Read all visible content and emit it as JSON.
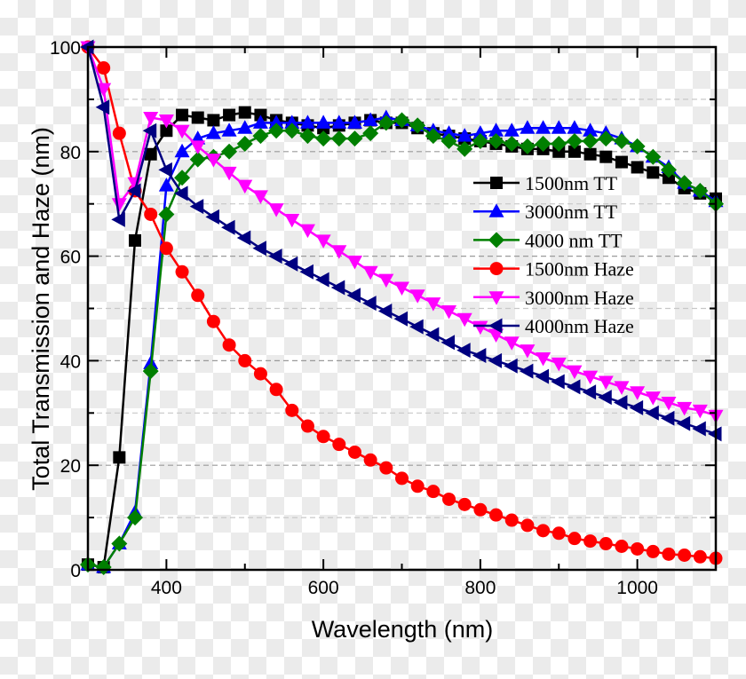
{
  "chart_data": {
    "type": "line",
    "title": "",
    "xlabel": "Wavelength (nm)",
    "ylabel": "Total Transmission and Haze (nm)",
    "xlim": [
      300,
      1100
    ],
    "ylim": [
      0,
      100
    ],
    "xticks": [
      400,
      600,
      800,
      1000
    ],
    "yticks": [
      0,
      20,
      40,
      60,
      80,
      100
    ],
    "grid": "horizontal dashed",
    "legend_position": "right",
    "x": [
      300,
      320,
      340,
      360,
      380,
      400,
      420,
      440,
      460,
      480,
      500,
      520,
      540,
      560,
      580,
      600,
      620,
      640,
      660,
      680,
      700,
      720,
      740,
      760,
      780,
      800,
      820,
      840,
      860,
      880,
      900,
      920,
      940,
      960,
      980,
      1000,
      1020,
      1040,
      1060,
      1080,
      1100
    ],
    "series": [
      {
        "name": "1500nm TT",
        "color": "#000000",
        "marker": "square",
        "values": [
          1,
          0.5,
          21.5,
          63,
          79.5,
          84,
          87,
          86.5,
          86,
          87,
          87.5,
          87,
          86,
          85.5,
          85,
          84.5,
          85,
          85.5,
          86,
          85.5,
          85.5,
          84.5,
          83.5,
          83,
          82.5,
          82,
          81.5,
          81,
          80.5,
          80.5,
          80,
          80,
          79.5,
          79,
          78,
          77,
          76,
          75,
          73,
          72,
          71
        ]
      },
      {
        "name": "3000nm TT",
        "color": "#0000ff",
        "marker": "triangle-up",
        "values": [
          1,
          0.5,
          5,
          11,
          39.5,
          73.5,
          80,
          82.5,
          83.5,
          84,
          84.5,
          85.5,
          85.5,
          85.5,
          85.5,
          85.5,
          85.5,
          85.5,
          86,
          86.5,
          86,
          85,
          84,
          83.5,
          83,
          83.5,
          84,
          84,
          84.5,
          84.5,
          84.5,
          84.5,
          84,
          83.5,
          82.5,
          81,
          79,
          77,
          74,
          72.5,
          70.5
        ]
      },
      {
        "name": "4000 nm TT",
        "color": "#007f00",
        "marker": "diamond",
        "values": [
          1,
          0.5,
          5,
          10,
          38,
          68,
          75,
          78.5,
          79,
          80,
          81.5,
          83,
          84,
          84,
          83,
          82.5,
          82.5,
          82.5,
          83.5,
          85.5,
          86,
          85,
          83,
          82,
          80.5,
          82,
          82,
          81.5,
          81,
          81.5,
          81.5,
          82,
          82,
          82.5,
          82,
          81,
          79,
          76.5,
          74,
          72.5,
          70
        ]
      },
      {
        "name": "1500nm Haze",
        "color": "#ff0000",
        "marker": "circle",
        "values": [
          100,
          96,
          83.5,
          72.5,
          68,
          61.5,
          57,
          52.5,
          47.5,
          43,
          40,
          37.5,
          34.5,
          30.5,
          27.5,
          25.5,
          24,
          22.5,
          21,
          19.5,
          17.5,
          16,
          15,
          13.5,
          12.5,
          11.5,
          10.5,
          9.5,
          8.5,
          7.5,
          7,
          6,
          5.5,
          5,
          4.5,
          4,
          3.5,
          3,
          2.8,
          2.5,
          2.2
        ]
      },
      {
        "name": "3000nm Haze",
        "color": "#ff00ff",
        "marker": "triangle-down",
        "values": [
          100,
          92,
          70,
          74,
          86.5,
          86,
          84,
          81,
          78.5,
          76,
          73.5,
          71.5,
          69,
          67,
          65,
          63,
          61,
          59,
          57,
          55.5,
          54,
          52.5,
          51,
          49.5,
          48,
          46.5,
          45,
          43.5,
          42,
          40.5,
          39.5,
          38,
          37,
          36,
          35,
          34,
          33,
          32,
          31,
          30.5,
          29.5
        ]
      },
      {
        "name": "4000nm Haze",
        "color": "#000080",
        "marker": "triangle-left",
        "values": [
          100,
          88.5,
          67,
          72.5,
          84,
          76.5,
          72,
          69.5,
          67.5,
          65.5,
          63.5,
          61.5,
          60,
          58.5,
          57,
          55.5,
          54,
          52.5,
          51,
          49.5,
          48,
          46.5,
          45,
          43.5,
          42,
          41,
          40,
          39,
          38,
          37,
          36,
          35,
          34,
          33,
          32,
          31,
          30,
          29,
          28,
          27,
          26
        ]
      }
    ]
  }
}
